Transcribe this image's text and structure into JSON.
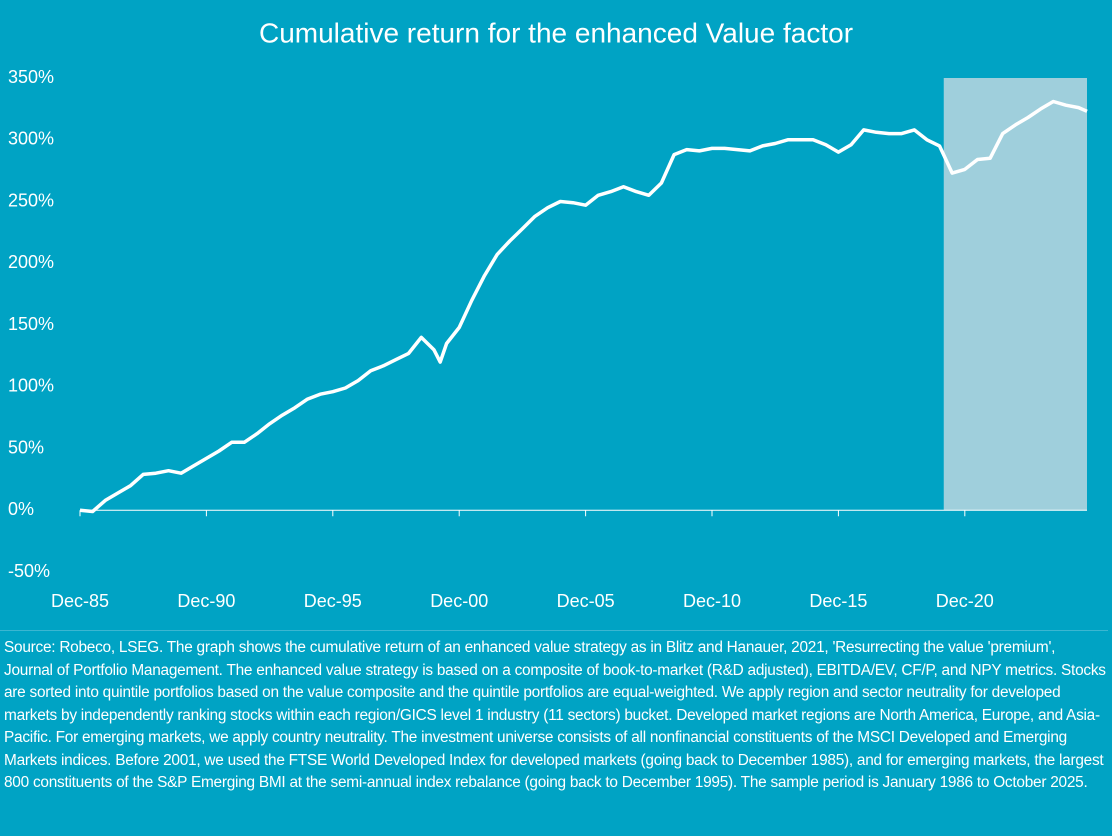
{
  "chart_data": {
    "type": "line",
    "title": "Cumulative return for the enhanced Value factor",
    "x": [
      "Dec-85",
      "Jun-86",
      "Dec-86",
      "Jun-87",
      "Dec-87",
      "Jun-88",
      "Dec-88",
      "Jun-89",
      "Dec-89",
      "Jun-90",
      "Dec-90",
      "Jun-91",
      "Dec-91",
      "Jun-92",
      "Dec-92",
      "Jun-93",
      "Dec-93",
      "Jun-94",
      "Dec-94",
      "Jun-95",
      "Dec-95",
      "Jun-96",
      "Dec-96",
      "Jun-97",
      "Dec-97",
      "Jun-98",
      "Dec-98",
      "Jun-99",
      "Dec-99",
      "Mar-00",
      "Jun-00",
      "Dec-00",
      "Jun-01",
      "Dec-01",
      "Jun-02",
      "Dec-02",
      "Jun-03",
      "Dec-03",
      "Jun-04",
      "Dec-04",
      "Jun-05",
      "Dec-05",
      "Jun-06",
      "Dec-06",
      "Jun-07",
      "Dec-07",
      "Jun-08",
      "Dec-08",
      "Jun-09",
      "Dec-09",
      "Jun-10",
      "Dec-10",
      "Jun-11",
      "Dec-11",
      "Jun-12",
      "Dec-12",
      "Jun-13",
      "Dec-13",
      "Jun-14",
      "Dec-14",
      "Jun-15",
      "Dec-15",
      "Jun-16",
      "Dec-16",
      "Jun-17",
      "Dec-17",
      "Jun-18",
      "Dec-18",
      "Jun-19",
      "Dec-19",
      "Jun-20",
      "Dec-20",
      "Jun-21",
      "Dec-21",
      "Jun-22",
      "Dec-22",
      "Jun-23",
      "Dec-23",
      "Jun-24",
      "Dec-24",
      "Jun-25",
      "Oct-25"
    ],
    "values": [
      0,
      -1,
      8,
      14,
      20,
      29,
      30,
      32,
      30,
      36,
      42,
      48,
      55,
      55,
      62,
      70,
      77,
      83,
      90,
      94,
      96,
      99,
      105,
      113,
      117,
      122,
      127,
      140,
      130,
      120,
      135,
      148,
      170,
      190,
      207,
      218,
      228,
      238,
      245,
      250,
      249,
      247,
      255,
      258,
      262,
      258,
      255,
      265,
      288,
      292,
      291,
      293,
      293,
      292,
      291,
      295,
      297,
      300,
      300,
      300,
      296,
      290,
      296,
      308,
      306,
      305,
      305,
      308,
      300,
      295,
      273,
      276,
      284,
      285,
      305,
      312,
      318,
      325,
      331,
      328,
      326,
      323
    ],
    "color": "#ffffff",
    "xlim": [
      "Dec-85",
      "Oct-25"
    ],
    "xticks": [
      "Dec-85",
      "Dec-90",
      "Dec-95",
      "Dec-00",
      "Dec-05",
      "Dec-10",
      "Dec-15",
      "Dec-20"
    ],
    "ylim": [
      -50,
      350
    ],
    "yticks": [
      {
        "value": -50,
        "label": "-50%"
      },
      {
        "value": 0,
        "label": "0%"
      },
      {
        "value": 50,
        "label": "50%"
      },
      {
        "value": 100,
        "label": "100%"
      },
      {
        "value": 150,
        "label": "150%"
      },
      {
        "value": 200,
        "label": "200%"
      },
      {
        "value": 250,
        "label": "250%"
      },
      {
        "value": 300,
        "label": "300%"
      },
      {
        "value": 350,
        "label": "350%"
      }
    ],
    "highlight_x": [
      "Feb-20",
      "Oct-25"
    ],
    "highlight_color": "#9fcfdc",
    "footnote": "Source: Robeco, LSEG. The graph shows the cumulative return of an enhanced value strategy as in Blitz and Hanauer, 2021, 'Resurrecting the value 'premium', Journal of Portfolio Management. The enhanced value strategy is based on a composite of book-to-market (R&D adjusted), EBITDA/EV, CF/P, and NPY metrics. Stocks are sorted into quintile portfolios based on the value composite and the quintile portfolios are equal-weighted. We apply region and sector neutrality for developed markets by independently ranking stocks within each region/GICS level 1 industry (11 sectors) bucket. Developed market regions are North America, Europe, and Asia-Pacific. For emerging markets, we apply country neutrality. The investment universe consists of all nonfinancial constituents of the MSCI Developed and Emerging Markets indices. Before 2001, we used the FTSE World Developed Index for developed markets (going back to December 1985), and for emerging markets, the largest 800 constituents of the S&P Emerging BMI at the semi-annual index rebalance (going back to December 1995). The sample period is January 1986 to October 2025."
  }
}
